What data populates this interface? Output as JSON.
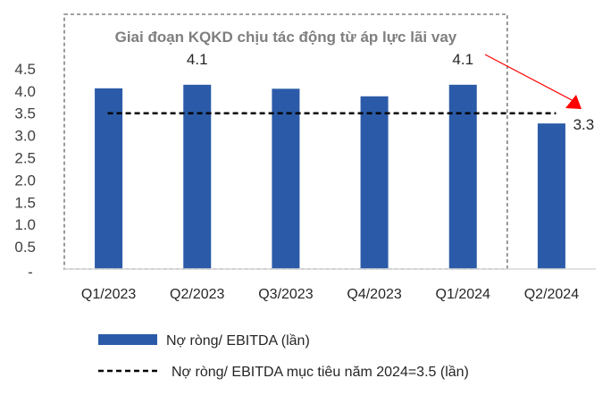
{
  "chart_data": {
    "type": "bar",
    "title": "",
    "xlabel": "",
    "ylabel": "",
    "categories": [
      "Q1/2023",
      "Q2/2023",
      "Q3/2023",
      "Q4/2023",
      "Q1/2024",
      "Q2/2024"
    ],
    "series": [
      {
        "name": "Nợ ròng/ EBITDA (lần)",
        "type": "bar",
        "color": "#2b5ba8",
        "values": [
          4.06,
          4.14,
          4.05,
          3.88,
          4.14,
          3.27
        ]
      },
      {
        "name": "Nợ ròng/ EBITDA mục tiêu năm 2024=3.5 (lần)",
        "type": "line",
        "style": "dashed",
        "color": "#000000",
        "value": 3.5
      }
    ],
    "data_labels": [
      {
        "category": "Q2/2023",
        "text": "4.1"
      },
      {
        "category": "Q1/2024",
        "text": "4.1"
      },
      {
        "category": "Q2/2024",
        "text": "3.3"
      }
    ],
    "yticks": [
      "-",
      "0.5",
      "1.0",
      "1.5",
      "2.0",
      "2.5",
      "3.0",
      "3.5",
      "4.0",
      "4.5"
    ],
    "ylim": [
      0,
      4.5
    ],
    "grid": false,
    "legend": "bottom",
    "annotation": {
      "text": "Giai đoạn KQKD chịu tác động từ áp lực lãi vay",
      "box_style": "dashed gray",
      "spans": [
        "Q1/2023",
        "Q1/2024"
      ],
      "arrow_color": "#ff0000"
    }
  }
}
